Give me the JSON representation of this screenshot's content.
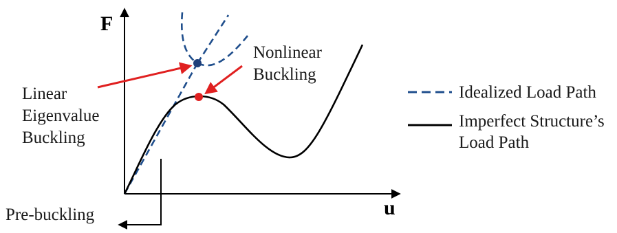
{
  "axes": {
    "y_label": "F",
    "x_label": "u"
  },
  "annotations": {
    "linear_eigenvalue": [
      "Linear",
      "Eigenvalue",
      "Buckling"
    ],
    "nonlinear": [
      "Nonlinear",
      "Buckling"
    ],
    "pre_buckling": "Pre-buckling"
  },
  "legend": {
    "idealized": "Idealized Load Path",
    "imperfect": [
      "Imperfect Structure’s",
      "Load Path"
    ]
  },
  "colors": {
    "idealized_path": "#1f4e8c",
    "imperfect_path": "#000000",
    "arrow": "#e02020",
    "bifurcation_point": "#1f3f7a",
    "limit_point": "#e02020",
    "axis": "#000000"
  }
}
